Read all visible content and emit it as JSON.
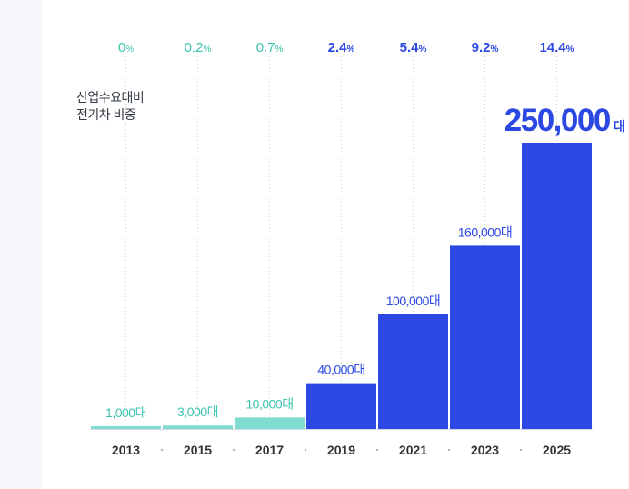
{
  "chart_data": {
    "type": "bar",
    "categories": [
      "2013",
      "2015",
      "2017",
      "2019",
      "2021",
      "2023",
      "2025"
    ],
    "values": [
      1000,
      3000,
      10000,
      40000,
      100000,
      160000,
      250000
    ],
    "value_labels": [
      "1,000대",
      "3,000대",
      "10,000대",
      "40,000대",
      "100,000대",
      "160,000대",
      "250,000대"
    ],
    "highlight_value": "250,000",
    "highlight_unit": "대",
    "share_values": [
      "0%",
      "0.2%",
      "0.7%",
      "2.4%",
      "5.4%",
      "9.2%",
      "14.4%"
    ],
    "share_label": "산업수요대비\n전기차 비중",
    "ylim": [
      0,
      250000
    ],
    "grid": false,
    "colors": {
      "early": "#7fdcd0",
      "early_text": "#3cc4ae",
      "late": "#2b48e3",
      "late_text": "#2b48e3",
      "axis": "#333333",
      "year_text": "#333333"
    }
  }
}
